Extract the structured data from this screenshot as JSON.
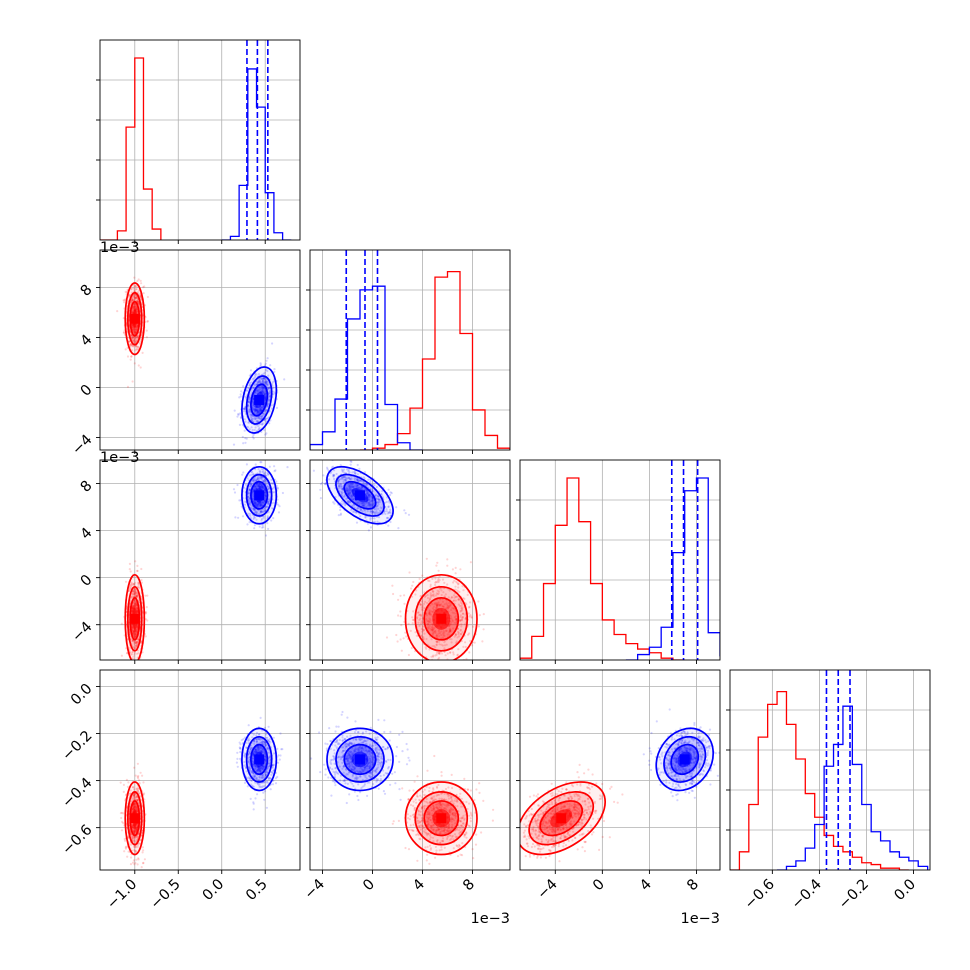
{
  "chart_data": {
    "type": "corner",
    "grid": true,
    "variables": [
      {
        "range": [
          -1.4,
          0.9
        ],
        "ticks": [
          -1.0,
          -0.5,
          0.0,
          0.5
        ],
        "tick_labels": [
          "−1.0",
          "−0.5",
          "0.0",
          "0.5"
        ],
        "offset_label": ""
      },
      {
        "range": [
          -5.0,
          11.0
        ],
        "ticks": [
          -4,
          0,
          4,
          8
        ],
        "tick_labels": [
          "−4",
          "0",
          "4",
          "8"
        ],
        "offset_label": "1e−3"
      },
      {
        "range": [
          -7.0,
          10.0
        ],
        "ticks": [
          -4,
          0,
          4,
          8
        ],
        "tick_labels": [
          "−4",
          "0",
          "4",
          "8"
        ],
        "offset_label": "1e−3"
      },
      {
        "range": [
          -0.78,
          0.07
        ],
        "ticks": [
          -0.6,
          -0.4,
          -0.2,
          0.0
        ],
        "tick_labels": [
          "−0.6",
          "−0.4",
          "−0.2",
          "0.0"
        ],
        "offset_label": ""
      }
    ],
    "series": [
      {
        "color": "#ff0000",
        "mean": [
          -1.0,
          5.5,
          -3.5,
          -0.56
        ],
        "std": [
          0.05,
          1.3,
          1.7,
          0.07
        ],
        "correlations": [
          [
            1,
            0,
            0,
            0
          ],
          [
            0,
            1,
            0,
            0
          ],
          [
            0,
            0,
            1,
            0.45
          ],
          [
            0,
            0,
            0.45,
            1
          ]
        ],
        "histograms": [
          {
            "edges": [
              -1.4,
              -1.3,
              -1.2,
              -1.1,
              -1.0,
              -0.9,
              -0.8,
              -0.7
            ],
            "counts": [
              0,
              0,
              5,
              62,
              100,
              28,
              6
            ]
          },
          {
            "edges": [
              -1,
              0,
              1,
              2,
              3,
              4,
              5,
              6,
              7,
              8,
              9,
              10,
              11
            ],
            "counts": [
              0,
              1,
              3,
              9,
              23,
              50,
              95,
              98,
              64,
              22,
              8,
              1
            ]
          },
          {
            "edges": [
              -7,
              -6,
              -5,
              -4,
              -3,
              -2,
              -1,
              0,
              1,
              2,
              3,
              4,
              5,
              6,
              7
            ],
            "counts": [
              1,
              13,
              42,
              74,
              100,
              76,
              42,
              22,
              14,
              9,
              6,
              4,
              1,
              0
            ]
          },
          {
            "edges": [
              -0.78,
              -0.74,
              -0.7,
              -0.66,
              -0.62,
              -0.58,
              -0.54,
              -0.5,
              -0.46,
              -0.42,
              -0.38,
              -0.34,
              -0.3,
              -0.26,
              -0.22,
              -0.18,
              -0.14,
              -0.1,
              -0.06,
              -0.02
            ],
            "counts": [
              0,
              10,
              36,
              73,
              91,
              98,
              80,
              61,
              42,
              29,
              19,
              13,
              10,
              7,
              4,
              3,
              1,
              1,
              0
            ]
          }
        ]
      },
      {
        "color": "#0000ff",
        "mean": [
          0.43,
          -1.0,
          7.0,
          -0.31
        ],
        "std": [
          0.09,
          1.2,
          1.1,
          0.06
        ],
        "correlations": [
          [
            1,
            0.3,
            0,
            0
          ],
          [
            0.3,
            1,
            -0.55,
            0
          ],
          [
            0,
            -0.55,
            1,
            0.2
          ],
          [
            0,
            0,
            0.2,
            1
          ]
        ],
        "quantiles": [
          [
            0.29,
            0.41,
            0.53
          ],
          [
            -2.1,
            -0.6,
            0.4
          ],
          [
            5.9,
            6.9,
            8.1
          ],
          [
            -0.37,
            -0.32,
            -0.27
          ]
        ],
        "histograms": [
          {
            "edges": [
              0.0,
              0.1,
              0.2,
              0.3,
              0.4,
              0.5,
              0.6,
              0.7,
              0.8
            ],
            "counts": [
              0,
              2,
              30,
              94,
              73,
              26,
              4,
              0
            ]
          },
          {
            "edges": [
              -5,
              -4,
              -3,
              -2,
              -1,
              0,
              1,
              2,
              3,
              4
            ],
            "counts": [
              3,
              10,
              28,
              72,
              88,
              90,
              25,
              4,
              0
            ]
          },
          {
            "edges": [
              2,
              3,
              4,
              5,
              6,
              7,
              8,
              9,
              10
            ],
            "counts": [
              0,
              3,
              7,
              18,
              59,
              93,
              100,
              15,
              2
            ]
          },
          {
            "edges": [
              -0.58,
              -0.54,
              -0.5,
              -0.46,
              -0.42,
              -0.38,
              -0.34,
              -0.3,
              -0.26,
              -0.22,
              -0.18,
              -0.14,
              -0.1,
              -0.06,
              -0.02,
              0.02,
              0.06
            ],
            "counts": [
              0,
              2,
              5,
              12,
              25,
              57,
              69,
              90,
              58,
              36,
              21,
              16,
              10,
              7,
              5,
              2
            ]
          }
        ]
      }
    ]
  }
}
